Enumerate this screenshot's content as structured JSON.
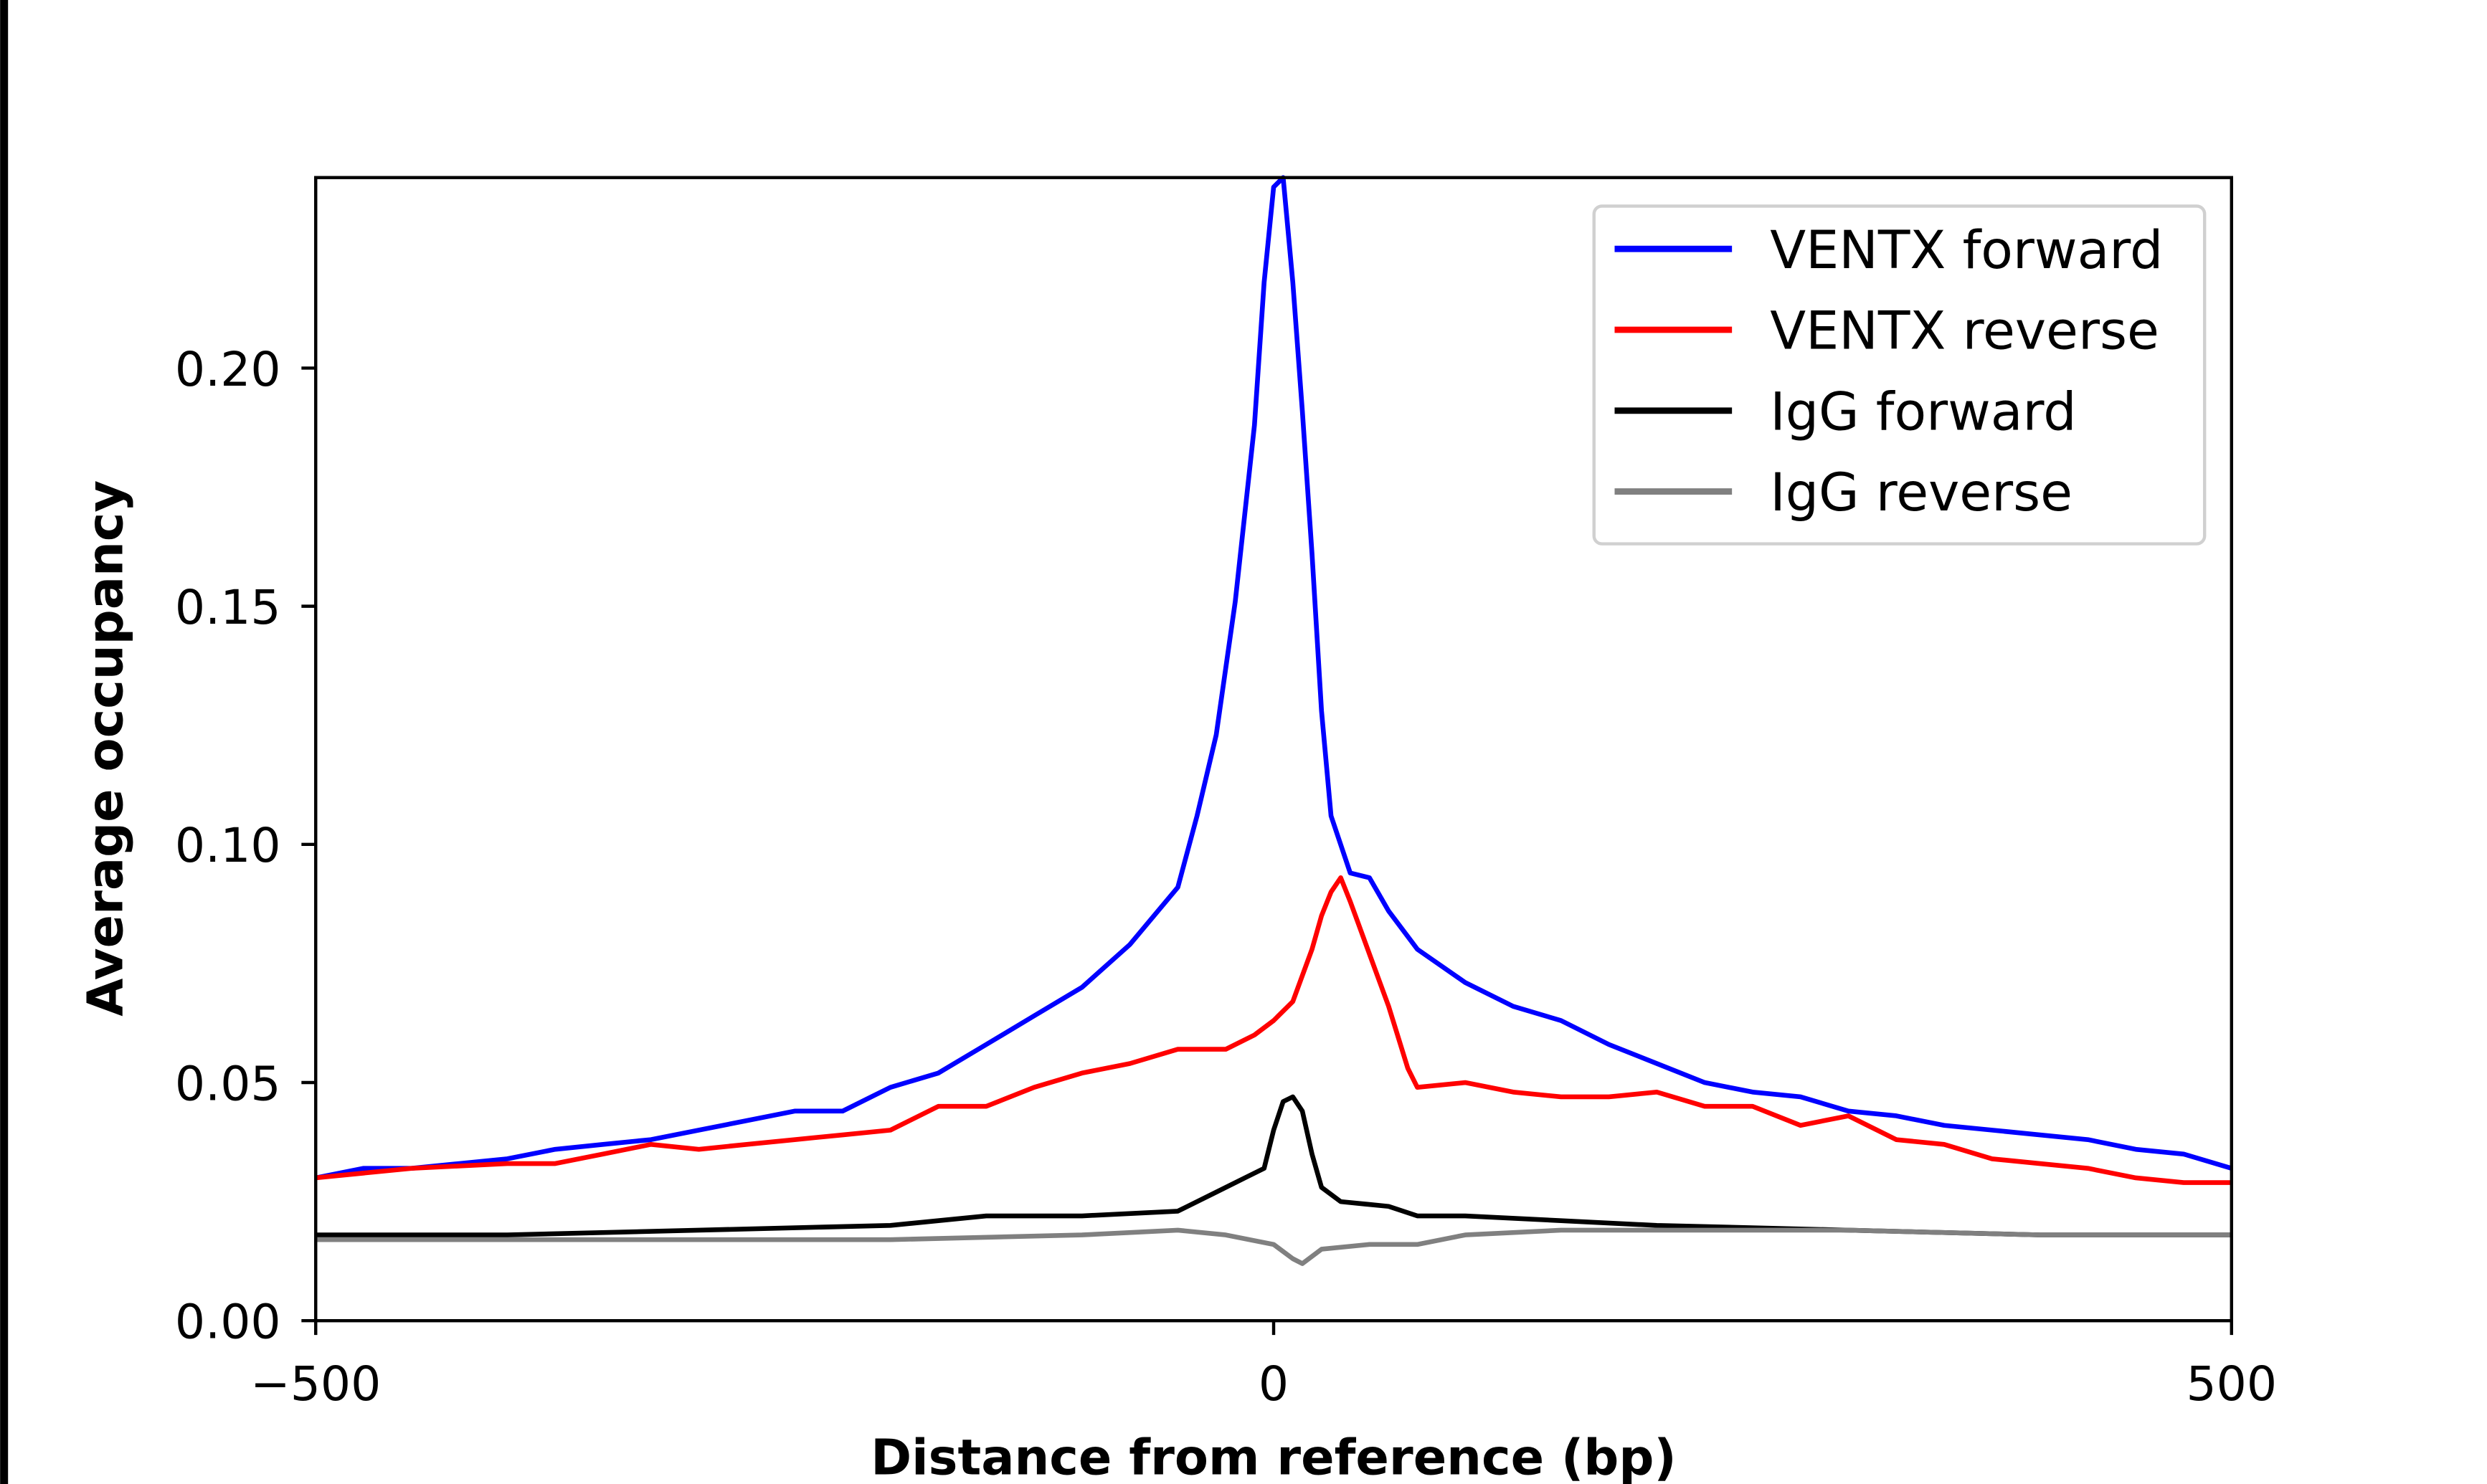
{
  "chart_data": {
    "type": "line",
    "title": "",
    "xlabel": "Distance from reference (bp)",
    "ylabel": "Average occupancy",
    "xlim": [
      -500,
      500
    ],
    "ylim": [
      0,
      0.24
    ],
    "xticks": [
      -500,
      0,
      500
    ],
    "xtick_labels": [
      "−500",
      "0",
      "500"
    ],
    "yticks": [
      0,
      0.05,
      0.1,
      0.15,
      0.2
    ],
    "ytick_labels": [
      "0.00",
      "0.05",
      "0.10",
      "0.15",
      "0.20"
    ],
    "grid": false,
    "legend_position": "top-right",
    "series": [
      {
        "name": "VENTX forward",
        "color": "#0000ff",
        "x": [
          -500,
          -475,
          -450,
          -425,
          -400,
          -375,
          -350,
          -325,
          -300,
          -275,
          -250,
          -225,
          -200,
          -175,
          -150,
          -125,
          -100,
          -75,
          -50,
          -40,
          -30,
          -20,
          -10,
          -5,
          0,
          5,
          10,
          15,
          20,
          25,
          30,
          40,
          50,
          60,
          75,
          100,
          125,
          150,
          175,
          200,
          225,
          250,
          275,
          300,
          325,
          350,
          375,
          400,
          425,
          450,
          475,
          500
        ],
        "y": [
          0.03,
          0.032,
          0.032,
          0.033,
          0.034,
          0.036,
          0.037,
          0.038,
          0.04,
          0.042,
          0.044,
          0.044,
          0.049,
          0.052,
          0.058,
          0.064,
          0.07,
          0.079,
          0.091,
          0.106,
          0.123,
          0.151,
          0.188,
          0.218,
          0.238,
          0.24,
          0.218,
          0.191,
          0.161,
          0.128,
          0.106,
          0.094,
          0.093,
          0.086,
          0.078,
          0.071,
          0.066,
          0.063,
          0.058,
          0.054,
          0.05,
          0.048,
          0.047,
          0.044,
          0.043,
          0.041,
          0.04,
          0.039,
          0.038,
          0.036,
          0.035,
          0.032
        ]
      },
      {
        "name": "VENTX reverse",
        "color": "#ff0000",
        "x": [
          -500,
          -450,
          -400,
          -375,
          -350,
          -325,
          -300,
          -275,
          -250,
          -225,
          -200,
          -175,
          -150,
          -125,
          -100,
          -75,
          -50,
          -25,
          -10,
          0,
          10,
          20,
          25,
          30,
          35,
          40,
          50,
          60,
          70,
          75,
          100,
          125,
          150,
          175,
          200,
          225,
          250,
          275,
          300,
          325,
          350,
          375,
          400,
          425,
          450,
          475,
          500
        ],
        "y": [
          0.03,
          0.032,
          0.033,
          0.033,
          0.035,
          0.037,
          0.036,
          0.037,
          0.038,
          0.039,
          0.04,
          0.045,
          0.045,
          0.049,
          0.052,
          0.054,
          0.057,
          0.057,
          0.06,
          0.063,
          0.067,
          0.078,
          0.085,
          0.09,
          0.093,
          0.088,
          0.077,
          0.066,
          0.053,
          0.049,
          0.05,
          0.048,
          0.047,
          0.047,
          0.048,
          0.045,
          0.045,
          0.041,
          0.043,
          0.038,
          0.037,
          0.034,
          0.033,
          0.032,
          0.03,
          0.029,
          0.029
        ]
      },
      {
        "name": "IgG forward",
        "color": "#000000",
        "x": [
          -500,
          -400,
          -300,
          -200,
          -150,
          -100,
          -50,
          -30,
          -15,
          -5,
          0,
          5,
          10,
          15,
          20,
          25,
          35,
          60,
          75,
          100,
          150,
          200,
          300,
          400,
          500
        ],
        "y": [
          0.018,
          0.018,
          0.019,
          0.02,
          0.022,
          0.022,
          0.023,
          0.027,
          0.03,
          0.032,
          0.04,
          0.046,
          0.047,
          0.044,
          0.035,
          0.028,
          0.025,
          0.024,
          0.022,
          0.022,
          0.021,
          0.02,
          0.019,
          0.018,
          0.018
        ]
      },
      {
        "name": "IgG reverse",
        "color": "#808080",
        "x": [
          -500,
          -400,
          -300,
          -200,
          -100,
          -50,
          -25,
          0,
          10,
          15,
          25,
          50,
          75,
          100,
          150,
          200,
          300,
          400,
          500
        ],
        "y": [
          0.017,
          0.017,
          0.017,
          0.017,
          0.018,
          0.019,
          0.018,
          0.016,
          0.013,
          0.012,
          0.015,
          0.016,
          0.016,
          0.018,
          0.019,
          0.019,
          0.019,
          0.018,
          0.018
        ]
      }
    ]
  }
}
